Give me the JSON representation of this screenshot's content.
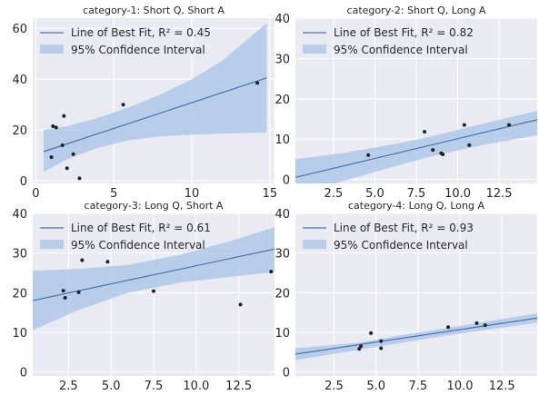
{
  "colors": {
    "panel_bg": "#eaeaf2",
    "grid": "#ffffff",
    "fit_line": "#4c72b0",
    "ci_band": "#a5c3e6",
    "point": "#222222"
  },
  "legend": {
    "fit_prefix": "Line of Best Fit, R² = ",
    "ci_label": "95% Confidence Interval"
  },
  "chart_data": [
    {
      "type": "scatter",
      "title": "category-1: Short Q, Short A",
      "r2": "0.45",
      "xlim": [
        -0.2,
        15.3
      ],
      "ylim": [
        -1,
        64
      ],
      "xticks": [
        0,
        5,
        10,
        15
      ],
      "xtick_labels": [
        "0",
        "5",
        "10",
        "15"
      ],
      "yticks": [
        0,
        20,
        40,
        60
      ],
      "ytick_labels": [
        "0",
        "20",
        "40",
        "60"
      ],
      "points": [
        [
          1.0,
          9.3
        ],
        [
          1.1,
          21.5
        ],
        [
          1.3,
          21.0
        ],
        [
          1.7,
          14.0
        ],
        [
          1.8,
          25.5
        ],
        [
          2.0,
          5.0
        ],
        [
          2.4,
          10.5
        ],
        [
          2.8,
          1.0
        ],
        [
          5.6,
          30.0
        ],
        [
          14.2,
          38.5
        ]
      ],
      "fit": {
        "x": [
          0.5,
          14.8
        ],
        "y": [
          11.5,
          40.5
        ]
      },
      "ci_upper": [
        [
          0.5,
          20.0
        ],
        [
          2.0,
          21.5
        ],
        [
          4.0,
          24.8
        ],
        [
          6.0,
          29.0
        ],
        [
          8.0,
          34.0
        ],
        [
          10.0,
          40.0
        ],
        [
          12.0,
          47.5
        ],
        [
          14.8,
          62.0
        ]
      ],
      "ci_lower": [
        [
          0.5,
          3.5
        ],
        [
          2.0,
          8.5
        ],
        [
          4.0,
          13.0
        ],
        [
          6.0,
          16.0
        ],
        [
          8.0,
          17.5
        ],
        [
          10.0,
          18.2
        ],
        [
          12.0,
          18.6
        ],
        [
          14.8,
          19.0
        ]
      ]
    },
    {
      "type": "scatter",
      "title": "category-2: Short Q, Long A",
      "r2": "0.82",
      "xlim": [
        0.2,
        14.8
      ],
      "ylim": [
        -1,
        40
      ],
      "xticks": [
        2.5,
        5.0,
        7.5,
        10.0,
        12.5
      ],
      "xtick_labels": [
        "2.5",
        "5.0",
        "7.5",
        "10.0",
        "12.5"
      ],
      "yticks": [
        0,
        10,
        20,
        30,
        40
      ],
      "ytick_labels": [
        "0",
        "10",
        "20",
        "30",
        "40"
      ],
      "points": [
        [
          4.6,
          6.0
        ],
        [
          8.0,
          11.8
        ],
        [
          8.5,
          7.3
        ],
        [
          9.0,
          6.5
        ],
        [
          9.1,
          6.2
        ],
        [
          10.4,
          13.5
        ],
        [
          10.7,
          8.5
        ],
        [
          13.1,
          13.5
        ]
      ],
      "fit": {
        "x": [
          0.2,
          14.8
        ],
        "y": [
          0.5,
          14.8
        ]
      },
      "ci_upper": [
        [
          0.2,
          5.0
        ],
        [
          3.0,
          6.5
        ],
        [
          6.0,
          8.6
        ],
        [
          8.0,
          10.3
        ],
        [
          10.0,
          12.3
        ],
        [
          12.0,
          14.3
        ],
        [
          14.8,
          17.0
        ]
      ],
      "ci_lower": [
        [
          0.2,
          -4.0
        ],
        [
          3.0,
          -0.5
        ],
        [
          6.0,
          3.0
        ],
        [
          8.0,
          5.3
        ],
        [
          10.0,
          7.2
        ],
        [
          12.0,
          8.9
        ],
        [
          14.8,
          11.0
        ]
      ]
    },
    {
      "type": "scatter",
      "title": "category-3: Long Q, Short A",
      "r2": "0.61",
      "xlim": [
        0.4,
        14.6
      ],
      "ylim": [
        -1,
        40
      ],
      "xticks": [
        2.5,
        5.0,
        7.5,
        10.0,
        12.5
      ],
      "xtick_labels": [
        "2.5",
        "5.0",
        "7.5",
        "10.0",
        "12.5"
      ],
      "yticks": [
        0,
        10,
        20,
        30,
        40
      ],
      "ytick_labels": [
        "0",
        "10",
        "20",
        "30",
        "40"
      ],
      "points": [
        [
          2.2,
          20.5
        ],
        [
          2.3,
          18.7
        ],
        [
          3.1,
          20.1
        ],
        [
          3.3,
          28.2
        ],
        [
          4.8,
          27.8
        ],
        [
          7.5,
          20.4
        ],
        [
          12.6,
          17.0
        ],
        [
          14.4,
          25.3
        ]
      ],
      "fit": {
        "x": [
          0.4,
          14.6
        ],
        "y": [
          18.0,
          31.0
        ]
      },
      "ci_upper": [
        [
          0.4,
          25.5
        ],
        [
          3.0,
          26.0
        ],
        [
          6.0,
          27.0
        ],
        [
          9.0,
          29.5
        ],
        [
          12.0,
          33.0
        ],
        [
          14.6,
          36.5
        ]
      ],
      "ci_lower": [
        [
          0.4,
          10.5
        ],
        [
          3.0,
          15.5
        ],
        [
          6.0,
          20.0
        ],
        [
          9.0,
          22.5
        ],
        [
          12.0,
          24.0
        ],
        [
          14.6,
          25.2
        ]
      ]
    },
    {
      "type": "scatter",
      "title": "category-4: Long Q, Long A",
      "r2": "0.93",
      "xlim": [
        0.2,
        14.6
      ],
      "ylim": [
        -1,
        40
      ],
      "xticks": [
        2.5,
        5.0,
        7.5,
        10.0,
        12.5
      ],
      "xtick_labels": [
        "2.5",
        "5.0",
        "7.5",
        "10.0",
        "12.5"
      ],
      "yticks": [
        0,
        10,
        20,
        30,
        40
      ],
      "ytick_labels": [
        "0",
        "10",
        "20",
        "30",
        "40"
      ],
      "points": [
        [
          4.0,
          5.8
        ],
        [
          4.1,
          6.5
        ],
        [
          4.7,
          9.8
        ],
        [
          5.3,
          7.8
        ],
        [
          5.3,
          6.0
        ],
        [
          9.3,
          11.3
        ],
        [
          11.0,
          12.3
        ],
        [
          11.5,
          11.8
        ]
      ],
      "fit": {
        "x": [
          0.2,
          14.6
        ],
        "y": [
          4.5,
          13.6
        ]
      },
      "ci_upper": [
        [
          0.2,
          6.0
        ],
        [
          4.0,
          7.4
        ],
        [
          7.0,
          9.6
        ],
        [
          10.0,
          11.6
        ],
        [
          14.6,
          14.8
        ]
      ],
      "ci_lower": [
        [
          0.2,
          3.0
        ],
        [
          4.0,
          5.6
        ],
        [
          7.0,
          7.7
        ],
        [
          10.0,
          9.7
        ],
        [
          14.6,
          12.4
        ]
      ]
    }
  ]
}
